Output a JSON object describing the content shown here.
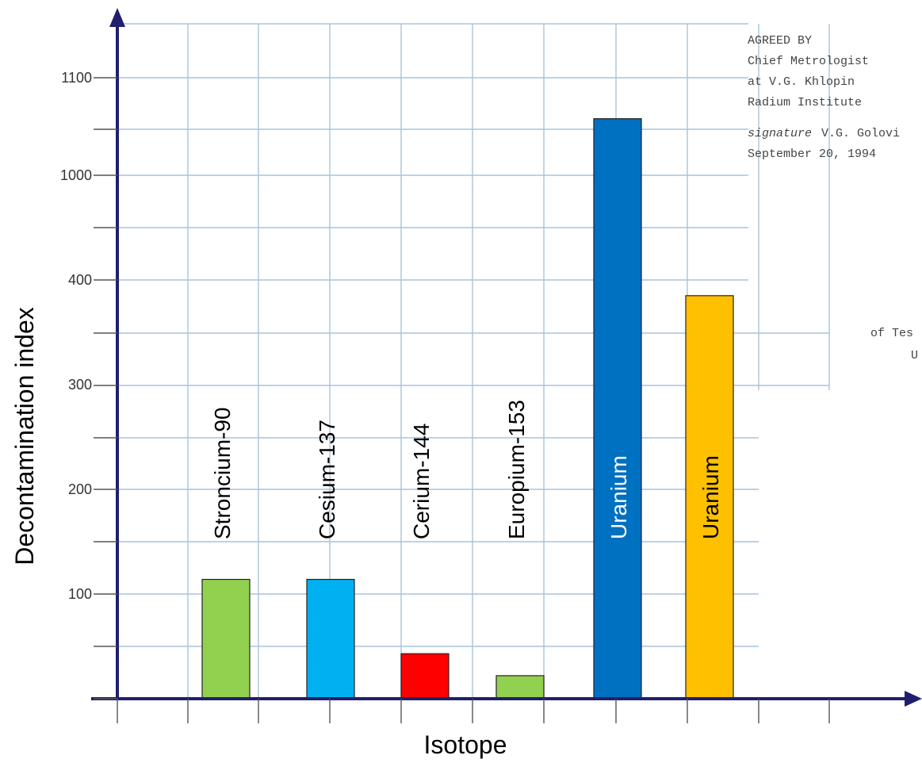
{
  "chart_data": {
    "type": "bar",
    "title": "",
    "xlabel": "Isotope",
    "ylabel": "Decontamination index",
    "y_tick_labels": [
      "100",
      "200",
      "300",
      "400",
      "1000",
      "1100"
    ],
    "y_axis_note": "broken scale: 0-400 linear, jumps to 1000-1100",
    "grid": true,
    "categories": [
      "Stroncium-90",
      "Cesium-137",
      "Cerium-144",
      "Europium-153",
      "Uranium",
      "Uranium"
    ],
    "values": [
      114,
      114,
      43,
      22,
      1058,
      385
    ],
    "colors": [
      "#92d050",
      "#00b0f0",
      "#ff0000",
      "#92d050",
      "#0070c0",
      "#ffc000"
    ],
    "label_colors": [
      "#000000",
      "#000000",
      "#000000",
      "#000000",
      "#ffffff",
      "#000000"
    ]
  },
  "stamp": {
    "lines": [
      "AGREED BY",
      "Chief Metrologist",
      "at V.G. Khlopin",
      "Radium Institute",
      "V.G. Golovi",
      "September 20, 1994"
    ],
    "signature_word": "signature",
    "fragment_1": "of Tes",
    "fragment_2": "U"
  }
}
